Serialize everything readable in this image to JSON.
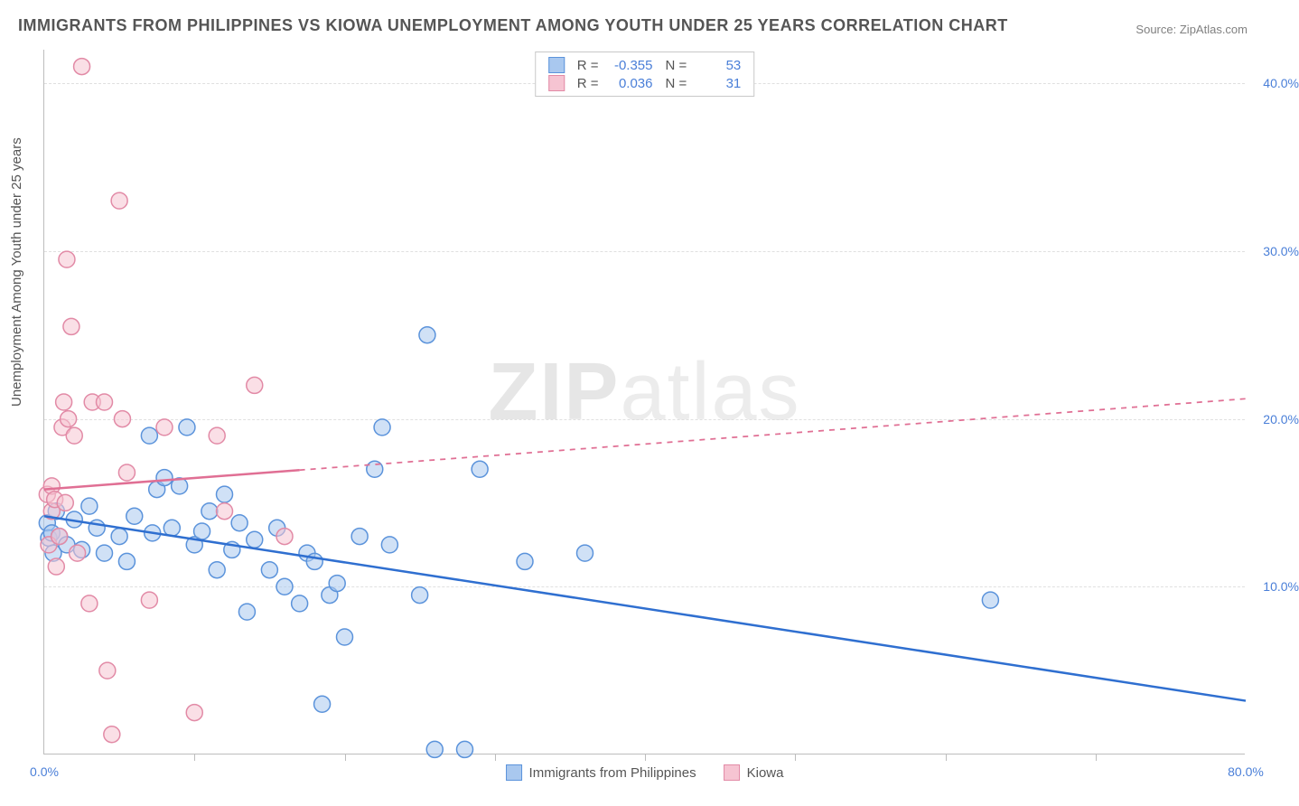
{
  "title": "IMMIGRANTS FROM PHILIPPINES VS KIOWA UNEMPLOYMENT AMONG YOUTH UNDER 25 YEARS CORRELATION CHART",
  "source_label": "Source:",
  "source_name": "ZipAtlas.com",
  "y_axis_label": "Unemployment Among Youth under 25 years",
  "watermark_bold": "ZIP",
  "watermark_thin": "atlas",
  "chart": {
    "type": "scatter",
    "xlim": [
      0,
      80
    ],
    "ylim": [
      0,
      42
    ],
    "x_ticks_labeled": [
      {
        "v": 0,
        "label": "0.0%"
      },
      {
        "v": 80,
        "label": "80.0%"
      }
    ],
    "x_ticks_unlabeled": [
      10,
      20,
      30,
      40,
      50,
      60,
      70
    ],
    "y_ticks": [
      {
        "v": 10,
        "label": "10.0%"
      },
      {
        "v": 20,
        "label": "20.0%"
      },
      {
        "v": 30,
        "label": "30.0%"
      },
      {
        "v": 40,
        "label": "40.0%"
      }
    ],
    "grid_color": "#e0e0e0",
    "axis_color": "#bdbdbd",
    "background_color": "#ffffff",
    "label_color": "#4a7fd8",
    "axis_label_fontsize": 14,
    "title_fontsize": 18,
    "marker_radius": 9,
    "marker_opacity": 0.55,
    "line_width": 2.5,
    "series": [
      {
        "name": "Immigrants from Philippines",
        "fill": "#a9c8ef",
        "stroke": "#5b93db",
        "line_stroke": "#2f6fd0",
        "r_label": "R =",
        "r_value": "-0.355",
        "n_label": "N =",
        "n_value": "53",
        "regression": {
          "x1": 0,
          "y1": 14.2,
          "x2": 80,
          "y2": 3.2,
          "solid_until": 80
        },
        "points": [
          [
            0.2,
            13.8
          ],
          [
            0.3,
            12.9
          ],
          [
            0.5,
            13.2
          ],
          [
            0.6,
            12.0
          ],
          [
            0.8,
            14.5
          ],
          [
            1.0,
            13.0
          ],
          [
            1.5,
            12.5
          ],
          [
            2,
            14
          ],
          [
            2.5,
            12.2
          ],
          [
            3,
            14.8
          ],
          [
            3.5,
            13.5
          ],
          [
            4,
            12
          ],
          [
            5,
            13
          ],
          [
            5.5,
            11.5
          ],
          [
            6,
            14.2
          ],
          [
            7,
            19
          ],
          [
            7.2,
            13.2
          ],
          [
            7.5,
            15.8
          ],
          [
            8,
            16.5
          ],
          [
            8.5,
            13.5
          ],
          [
            9,
            16
          ],
          [
            9.5,
            19.5
          ],
          [
            10,
            12.5
          ],
          [
            10.5,
            13.3
          ],
          [
            11,
            14.5
          ],
          [
            11.5,
            11
          ],
          [
            12,
            15.5
          ],
          [
            12.5,
            12.2
          ],
          [
            13,
            13.8
          ],
          [
            13.5,
            8.5
          ],
          [
            14,
            12.8
          ],
          [
            15,
            11
          ],
          [
            15.5,
            13.5
          ],
          [
            16,
            10
          ],
          [
            17,
            9
          ],
          [
            17.5,
            12
          ],
          [
            18,
            11.5
          ],
          [
            18.5,
            3
          ],
          [
            19,
            9.5
          ],
          [
            19.5,
            10.2
          ],
          [
            20,
            7
          ],
          [
            21,
            13
          ],
          [
            22,
            17
          ],
          [
            22.5,
            19.5
          ],
          [
            23,
            12.5
          ],
          [
            25,
            9.5
          ],
          [
            25.5,
            25
          ],
          [
            26,
            0.3
          ],
          [
            28,
            0.3
          ],
          [
            29,
            17
          ],
          [
            32,
            11.5
          ],
          [
            36,
            12
          ],
          [
            63,
            9.2
          ]
        ]
      },
      {
        "name": "Kiowa",
        "fill": "#f6c4d2",
        "stroke": "#e28aa6",
        "line_stroke": "#e06f94",
        "r_label": "R =",
        "r_value": "0.036",
        "n_label": "N =",
        "n_value": "31",
        "regression": {
          "x1": 0,
          "y1": 15.8,
          "x2": 80,
          "y2": 21.2,
          "solid_until": 17
        },
        "points": [
          [
            0.2,
            15.5
          ],
          [
            0.3,
            12.5
          ],
          [
            0.5,
            14.5
          ],
          [
            0.5,
            16
          ],
          [
            0.7,
            15.2
          ],
          [
            0.8,
            11.2
          ],
          [
            1,
            13
          ],
          [
            1.2,
            19.5
          ],
          [
            1.3,
            21
          ],
          [
            1.4,
            15
          ],
          [
            1.5,
            29.5
          ],
          [
            1.6,
            20
          ],
          [
            1.8,
            25.5
          ],
          [
            2,
            19
          ],
          [
            2.2,
            12
          ],
          [
            2.5,
            41
          ],
          [
            3,
            9
          ],
          [
            3.2,
            21
          ],
          [
            4,
            21
          ],
          [
            4.2,
            5
          ],
          [
            4.5,
            1.2
          ],
          [
            5,
            33
          ],
          [
            5.2,
            20
          ],
          [
            5.5,
            16.8
          ],
          [
            7,
            9.2
          ],
          [
            8,
            19.5
          ],
          [
            10,
            2.5
          ],
          [
            11.5,
            19
          ],
          [
            12,
            14.5
          ],
          [
            14,
            22
          ],
          [
            16,
            13
          ]
        ]
      }
    ]
  }
}
